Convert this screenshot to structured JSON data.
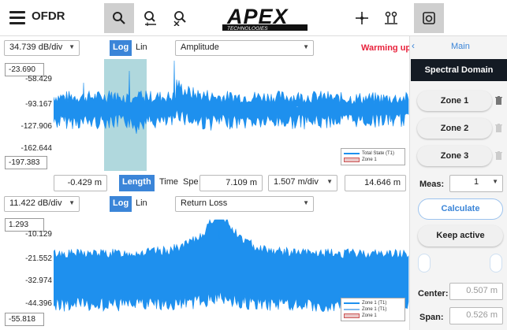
{
  "app": {
    "title": "OFDR"
  },
  "toolbar": {
    "icons": [
      "menu-icon",
      "zoom-icon",
      "zoom-in-icon",
      "zoom-out-icon",
      "crosshair-icon",
      "markers-icon",
      "camera-icon"
    ],
    "logo_text": "APEX",
    "logo_sub": "TECHNOLOGIES"
  },
  "top_plot": {
    "scale": "34.739 dB/div",
    "log_label": "Log",
    "lin_label": "Lin",
    "mode": "Amplitude",
    "status": "Warming up",
    "ymax": "-23.690",
    "ymin": "-197.383",
    "ticks": [
      "-58.429",
      "-93.167",
      "-127.906",
      "-162.644"
    ],
    "legend": [
      "Total State (T1)",
      "Zone 1"
    ]
  },
  "axis_bar": {
    "start": "-0.429 m",
    "length_label": "Length",
    "time_label": "Time",
    "spe_label": "Spe",
    "mid": "7.109 m",
    "scale": "1.507 m/div",
    "end": "14.646 m"
  },
  "bottom_plot": {
    "scale": "11.422 dB/div",
    "log_label": "Log",
    "lin_label": "Lin",
    "mode": "Return Loss",
    "ymax": "1.293",
    "ymin": "-55.818",
    "ticks": [
      "-10.129",
      "-21.552",
      "-32.974",
      "-44.396"
    ],
    "legend": [
      "Zone 1 (T1)",
      "Zone 1 (T1)",
      "Zone 1"
    ]
  },
  "panel": {
    "back_arrow": "‹",
    "main": "Main",
    "spectral": "Spectral Domain",
    "zones": [
      "Zone 1",
      "Zone 2",
      "Zone 3"
    ],
    "meas_label": "Meas:",
    "meas_value": "1",
    "calculate": "Calculate",
    "keep_active": "Keep active",
    "center_label": "Center:",
    "center_value": "0.507 m",
    "span_label": "Span:",
    "span_value": "0.526 m"
  },
  "colors": {
    "trace": "#1e90ee",
    "accent": "#3b85d8",
    "highlight": "#8ec7cf",
    "warning": "#e8223c",
    "dark": "#141b24"
  }
}
